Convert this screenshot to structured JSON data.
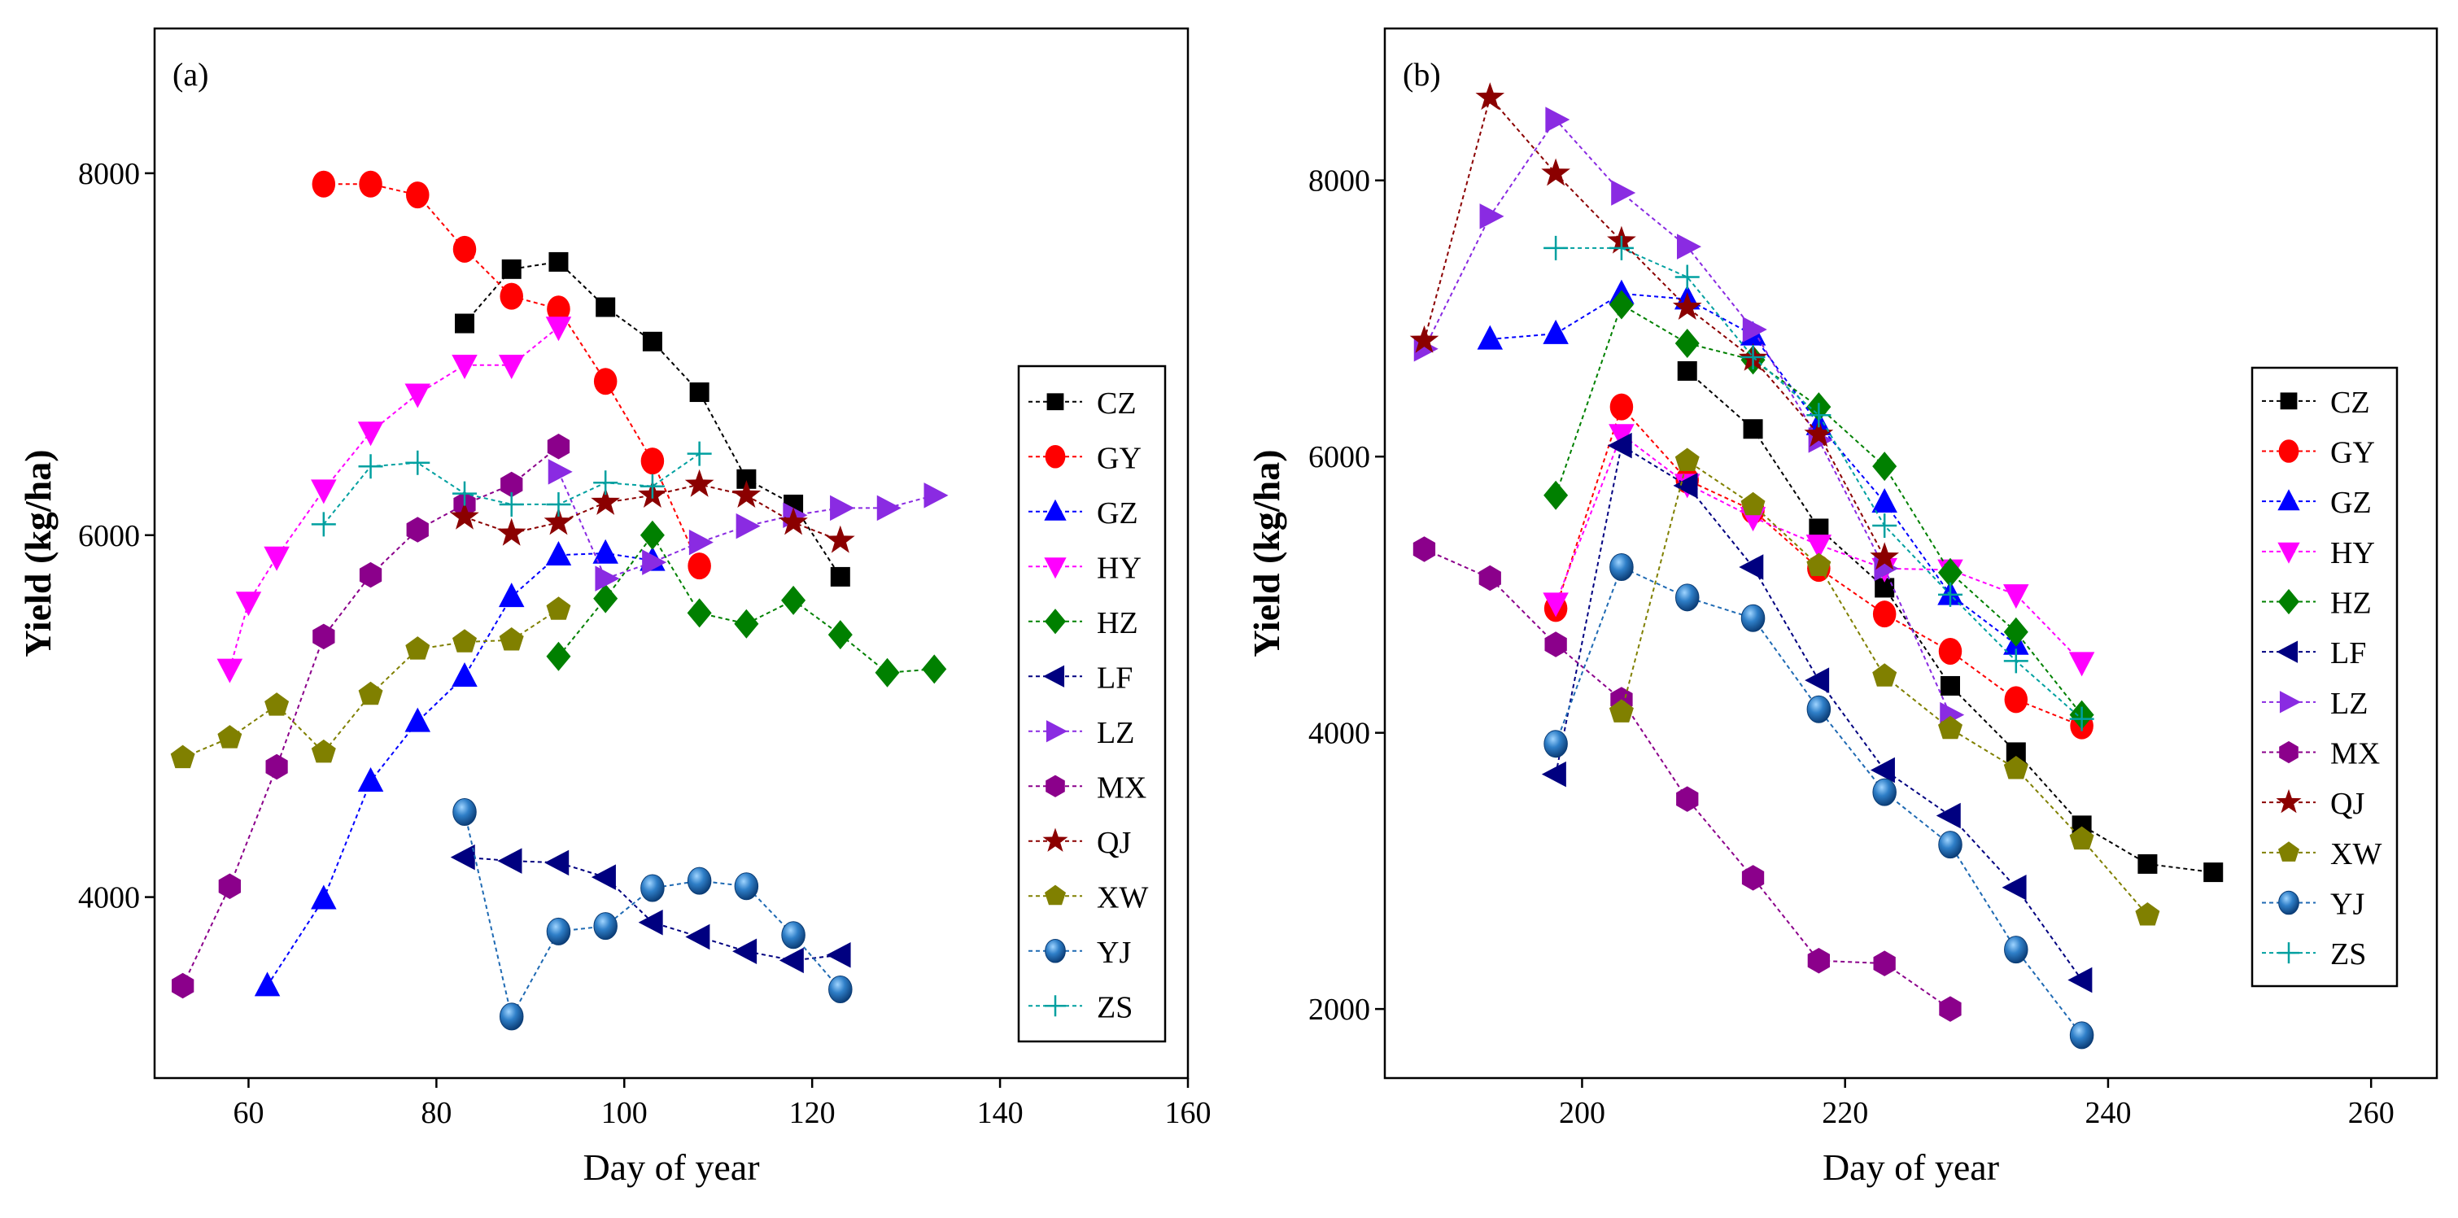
{
  "figure": {
    "panels": [
      "a",
      "b"
    ]
  },
  "chart_data": [
    {
      "type": "scatter",
      "panel_label": "(a)",
      "xlabel": "Day of year",
      "ylabel": "Yield (kg/ha)",
      "xlim": [
        50,
        160
      ],
      "ylim": [
        3000,
        8800
      ],
      "xticks": [
        60,
        80,
        100,
        120,
        140,
        160
      ],
      "yticks": [
        4000,
        6000,
        8000
      ],
      "legend_position": "right",
      "series": [
        {
          "name": "CZ",
          "color": "#000000",
          "marker": "square",
          "x": [
            83,
            88,
            93,
            98,
            103,
            108,
            113,
            118,
            123
          ],
          "y": [
            7170,
            7470,
            7510,
            7260,
            7070,
            6790,
            6310,
            6170,
            5770
          ]
        },
        {
          "name": "GY",
          "color": "#ff0000",
          "marker": "circle",
          "x": [
            68,
            73,
            78,
            83,
            88,
            93,
            98,
            103,
            108
          ],
          "y": [
            7940,
            7940,
            7880,
            7580,
            7320,
            7250,
            6850,
            6410,
            5830
          ]
        },
        {
          "name": "GZ",
          "color": "#0000ff",
          "marker": "triangle-up",
          "x": [
            62,
            68,
            73,
            78,
            83,
            88,
            93,
            98,
            103
          ],
          "y": [
            3510,
            3990,
            4640,
            4970,
            5220,
            5660,
            5890,
            5900,
            5860
          ]
        },
        {
          "name": "HY",
          "color": "#ff00ff",
          "marker": "triangle-down",
          "x": [
            58,
            60,
            63,
            68,
            73,
            78,
            83,
            88,
            93
          ],
          "y": [
            5260,
            5630,
            5880,
            6250,
            6570,
            6780,
            6940,
            6940,
            7150
          ]
        },
        {
          "name": "HZ",
          "color": "#008000",
          "marker": "diamond",
          "x": [
            93,
            98,
            103,
            108,
            113,
            118,
            123,
            128,
            133
          ],
          "y": [
            5330,
            5650,
            6000,
            5570,
            5510,
            5640,
            5450,
            5240,
            5260
          ]
        },
        {
          "name": "LF",
          "color": "#000080",
          "marker": "triangle-left",
          "x": [
            83,
            88,
            93,
            98,
            103,
            108,
            113,
            118,
            123
          ],
          "y": [
            4220,
            4200,
            4190,
            4110,
            3860,
            3780,
            3700,
            3650,
            3680
          ]
        },
        {
          "name": "LZ",
          "color": "#8a2be2",
          "marker": "triangle-right",
          "x": [
            93,
            98,
            103,
            108,
            113,
            118,
            123,
            128,
            133
          ],
          "y": [
            6350,
            5760,
            5850,
            5960,
            6050,
            6110,
            6150,
            6150,
            6220
          ]
        },
        {
          "name": "MX",
          "color": "#8b008b",
          "marker": "hexagon",
          "x": [
            53,
            58,
            63,
            68,
            73,
            78,
            83,
            88,
            93
          ],
          "y": [
            3510,
            4060,
            4720,
            5440,
            5780,
            6030,
            6170,
            6280,
            6490
          ]
        },
        {
          "name": "QJ",
          "color": "#8b0000",
          "marker": "star",
          "x": [
            83,
            88,
            93,
            98,
            103,
            108,
            113,
            118,
            123
          ],
          "y": [
            6100,
            6010,
            6070,
            6180,
            6220,
            6280,
            6220,
            6070,
            5970
          ]
        },
        {
          "name": "XW",
          "color": "#808000",
          "marker": "pentagon",
          "x": [
            53,
            58,
            63,
            68,
            73,
            78,
            83,
            88,
            93
          ],
          "y": [
            4770,
            4880,
            5060,
            4800,
            5120,
            5370,
            5410,
            5420,
            5590
          ]
        },
        {
          "name": "YJ",
          "color": "#1f6ab3",
          "marker": "sphere",
          "x": [
            83,
            88,
            93,
            98,
            103,
            108,
            113,
            118,
            123
          ],
          "y": [
            4470,
            3340,
            3810,
            3840,
            4050,
            4090,
            4060,
            3790,
            3490
          ]
        },
        {
          "name": "ZS",
          "color": "#00a0a0",
          "marker": "plus",
          "x": [
            68,
            73,
            78,
            83,
            88,
            93,
            98,
            103,
            108
          ],
          "y": [
            6060,
            6380,
            6400,
            6230,
            6170,
            6170,
            6290,
            6270,
            6450
          ]
        }
      ]
    },
    {
      "type": "scatter",
      "panel_label": "(b)",
      "xlabel": "Day of year",
      "ylabel": "Yield (kg/ha)",
      "xlim": [
        185,
        265
      ],
      "ylim": [
        1500,
        9100
      ],
      "xticks": [
        200,
        220,
        240,
        260
      ],
      "yticks": [
        2000,
        4000,
        6000,
        8000
      ],
      "legend_position": "right",
      "series": [
        {
          "name": "CZ",
          "color": "#000000",
          "marker": "square",
          "x": [
            208,
            213,
            218,
            223,
            228,
            233,
            238,
            243,
            248
          ],
          "y": [
            6620,
            6200,
            5480,
            5050,
            4340,
            3860,
            3330,
            3050,
            2990
          ]
        },
        {
          "name": "GY",
          "color": "#ff0000",
          "marker": "circle",
          "x": [
            198,
            203,
            208,
            213,
            218,
            223,
            228,
            233,
            238
          ],
          "y": [
            4900,
            6360,
            5830,
            5610,
            5190,
            4860,
            4590,
            4240,
            4050
          ]
        },
        {
          "name": "GZ",
          "color": "#0000ff",
          "marker": "triangle-up",
          "x": [
            193,
            198,
            203,
            208,
            213,
            218,
            223,
            228,
            233
          ],
          "y": [
            6850,
            6890,
            7180,
            7140,
            6880,
            6230,
            5670,
            5000,
            4640
          ]
        },
        {
          "name": "HY",
          "color": "#ff00ff",
          "marker": "triangle-down",
          "x": [
            198,
            203,
            208,
            213,
            218,
            223,
            228,
            233,
            238
          ],
          "y": [
            4940,
            6160,
            5800,
            5560,
            5360,
            5190,
            5180,
            5000,
            4510
          ]
        },
        {
          "name": "HZ",
          "color": "#008000",
          "marker": "diamond",
          "x": [
            198,
            203,
            208,
            213,
            218,
            223,
            228,
            233,
            238
          ],
          "y": [
            5720,
            7100,
            6820,
            6700,
            6360,
            5930,
            5160,
            4730,
            4130
          ]
        },
        {
          "name": "LF",
          "color": "#000080",
          "marker": "triangle-left",
          "x": [
            198,
            203,
            208,
            213,
            218,
            223,
            228,
            233,
            238
          ],
          "y": [
            3700,
            6080,
            5790,
            5200,
            4380,
            3730,
            3400,
            2880,
            2210
          ]
        },
        {
          "name": "LZ",
          "color": "#8a2be2",
          "marker": "triangle-right",
          "x": [
            188,
            193,
            198,
            203,
            208,
            213,
            218,
            223,
            228
          ],
          "y": [
            6780,
            7740,
            8440,
            7910,
            7520,
            6920,
            6120,
            5190,
            4130
          ]
        },
        {
          "name": "MX",
          "color": "#8b008b",
          "marker": "hexagon",
          "x": [
            188,
            193,
            198,
            203,
            208,
            213,
            218,
            223,
            228
          ],
          "y": [
            5330,
            5120,
            4640,
            4240,
            3520,
            2950,
            2350,
            2330,
            2000
          ]
        },
        {
          "name": "QJ",
          "color": "#8b0000",
          "marker": "star",
          "x": [
            188,
            193,
            198,
            203,
            208,
            213,
            218,
            223
          ],
          "y": [
            6840,
            8600,
            8050,
            7560,
            7080,
            6710,
            6160,
            5270
          ]
        },
        {
          "name": "XW",
          "color": "#808000",
          "marker": "pentagon",
          "x": [
            203,
            208,
            213,
            218,
            223,
            228,
            233,
            238,
            243
          ],
          "y": [
            4150,
            5970,
            5650,
            5210,
            4410,
            4030,
            3740,
            3230,
            2680
          ]
        },
        {
          "name": "YJ",
          "color": "#1f6ab3",
          "marker": "sphere",
          "x": [
            198,
            203,
            208,
            213,
            218,
            223,
            228,
            233,
            238
          ],
          "y": [
            3920,
            5200,
            4980,
            4830,
            4170,
            3570,
            3190,
            2430,
            1810
          ]
        },
        {
          "name": "ZS",
          "color": "#00a0a0",
          "marker": "plus",
          "x": [
            198,
            203,
            208,
            213,
            218,
            223,
            228,
            233,
            238
          ],
          "y": [
            7510,
            7510,
            7300,
            6720,
            6300,
            5500,
            5000,
            4520,
            4100
          ]
        }
      ]
    }
  ]
}
